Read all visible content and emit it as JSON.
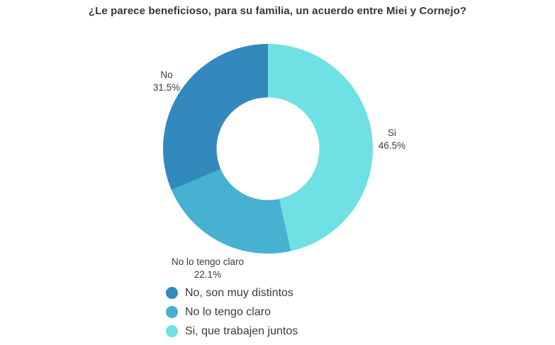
{
  "page": {
    "background_color": "#ffffff",
    "text_color": "#3a3a3a"
  },
  "chart_data": {
    "type": "pie",
    "subtype": "donut",
    "title": "¿Le parece beneficioso, para su familia, un acuerdo entre Miei y Cornejo?",
    "hole_ratio": 0.49,
    "direction": "counterclockwise",
    "start_angle": "top",
    "legend_position": "bottom-left",
    "slices": [
      {
        "label": "No",
        "legend_label": "No, son muy distintos",
        "value": 31.5,
        "pct_text": "31.5%",
        "color": "#3389BE"
      },
      {
        "label": "No lo tengo claro",
        "legend_label": "No lo tengo claro",
        "value": 22.1,
        "pct_text": "22.1%",
        "color": "#46B1D1"
      },
      {
        "label": "Si",
        "legend_label": "Si, que trabajen juntos",
        "value": 46.5,
        "pct_text": "46.5%",
        "color": "#6FE0E3"
      }
    ]
  }
}
